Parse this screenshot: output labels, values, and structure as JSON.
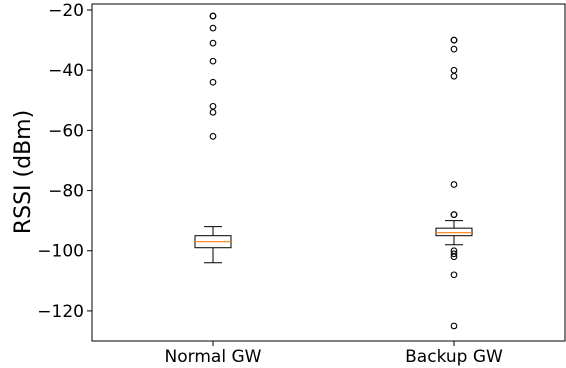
{
  "chart_data": {
    "type": "boxplot",
    "title": "",
    "xlabel": "",
    "ylabel": "RSSI (dBm)",
    "ylim": [
      -130,
      -18
    ],
    "yticks": [
      -20,
      -40,
      -60,
      -80,
      -100,
      -120
    ],
    "ytick_labels": [
      "−20",
      "−40",
      "−60",
      "−80",
      "−100",
      "−120"
    ],
    "categories": [
      "Normal GW",
      "Backup GW"
    ],
    "grid": false,
    "colors": {
      "box": "#000000",
      "median": "#ff7f0e",
      "axis": "#000000"
    },
    "boxes": [
      {
        "category": "Normal GW",
        "whisker_low": -104,
        "q1": -99,
        "median": -97,
        "q3": -95,
        "whisker_high": -92,
        "outliers": [
          -22,
          -22,
          -26,
          -31,
          -37,
          -44,
          -52,
          -54,
          -62
        ]
      },
      {
        "category": "Backup GW",
        "whisker_low": -98,
        "q1": -95,
        "median": -94,
        "q3": -92.5,
        "whisker_high": -90,
        "outliers": [
          -30,
          -30,
          -33,
          -40,
          -42,
          -78,
          -88,
          -88,
          -100,
          -101,
          -102,
          -108,
          -125
        ]
      }
    ]
  }
}
